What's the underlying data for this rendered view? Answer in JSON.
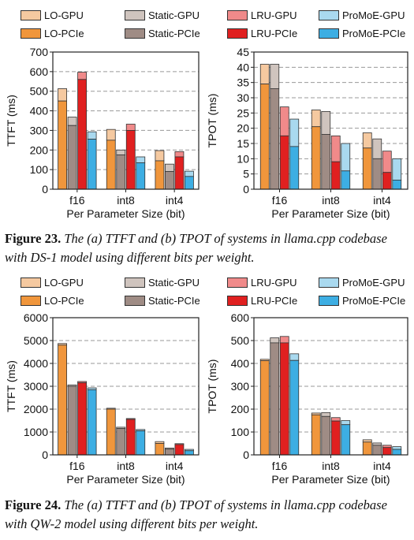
{
  "legend": [
    {
      "name": "LO-GPU",
      "color": "#f5c9a0"
    },
    {
      "name": "Static-GPU",
      "color": "#cfc4be"
    },
    {
      "name": "LRU-GPU",
      "color": "#f08a8a"
    },
    {
      "name": "ProMoE-GPU",
      "color": "#a9d9ef"
    },
    {
      "name": "LO-PCIe",
      "color": "#f0963c"
    },
    {
      "name": "Static-PCIe",
      "color": "#9f8c85"
    },
    {
      "name": "LRU-PCIe",
      "color": "#e02020"
    },
    {
      "name": "ProMoE-PCIe",
      "color": "#3daee3"
    }
  ],
  "figures": [
    {
      "caption_number": "Figure 23.",
      "caption_text": "The (a) TTFT and (b) TPOT of systems in llama.cpp codebase with DS-1 model using different bits per weight.",
      "charts": [
        {
          "type": "bar",
          "ylabel": "TTFT (ms)",
          "xlabel": "Per Parameter Size (bit)",
          "categories": [
            "f16",
            "int8",
            "int4"
          ],
          "ylim": [
            0,
            700
          ],
          "yticks": [
            0,
            100,
            200,
            300,
            400,
            500,
            600,
            700
          ],
          "grid": true,
          "systems": [
            "LO",
            "Static",
            "LRU",
            "ProMoE"
          ],
          "pcie": [
            [
              450,
              325,
              560,
              255
            ],
            [
              250,
              175,
              300,
              135
            ],
            [
              145,
              90,
              165,
              65
            ]
          ],
          "total": [
            [
              513,
              368,
              597,
              293
            ],
            [
              305,
              200,
              332,
              165
            ],
            [
              197,
              128,
              192,
              92
            ]
          ]
        },
        {
          "type": "bar",
          "ylabel": "TPOT (ms)",
          "xlabel": "Per Parameter Size (bit)",
          "categories": [
            "f16",
            "int8",
            "int4"
          ],
          "ylim": [
            0,
            45
          ],
          "yticks": [
            0,
            5,
            10,
            15,
            20,
            25,
            30,
            35,
            40,
            45
          ],
          "grid": true,
          "systems": [
            "LO",
            "Static",
            "LRU",
            "ProMoE"
          ],
          "pcie": [
            [
              34.5,
              33,
              17.5,
              14
            ],
            [
              20.5,
              18,
              9,
              6
            ],
            [
              13.5,
              10,
              5.5,
              3
            ]
          ],
          "total": [
            [
              41,
              41,
              27,
              23
            ],
            [
              26,
              25.5,
              17.5,
              15
            ],
            [
              18.5,
              16.5,
              12.5,
              10
            ]
          ]
        }
      ]
    },
    {
      "caption_number": "Figure 24.",
      "caption_text": "The (a) TTFT and (b) TPOT of systems in llama.cpp codebase with QW-2 model using different bits per weight.",
      "charts": [
        {
          "type": "bar",
          "ylabel": "TTFT (ms)",
          "xlabel": "Per Parameter Size (bit)",
          "categories": [
            "f16",
            "int8",
            "int4"
          ],
          "ylim": [
            0,
            6000
          ],
          "yticks": [
            0,
            1000,
            2000,
            3000,
            4000,
            5000,
            6000
          ],
          "grid": true,
          "systems": [
            "LO",
            "Static",
            "LRU",
            "ProMoE"
          ],
          "pcie": [
            [
              4800,
              3000,
              3150,
              2850
            ],
            [
              2000,
              1150,
              1550,
              1050
            ],
            [
              500,
              250,
              450,
              180
            ]
          ],
          "total": [
            [
              4870,
              3060,
              3210,
              2930
            ],
            [
              2040,
              1210,
              1590,
              1110
            ],
            [
              580,
              300,
              490,
              240
            ]
          ]
        },
        {
          "type": "bar",
          "ylabel": "TPOT (ms)",
          "xlabel": "Per Parameter Size (bit)",
          "categories": [
            "f16",
            "int8",
            "int4"
          ],
          "ylim": [
            0,
            600
          ],
          "yticks": [
            0,
            100,
            200,
            300,
            400,
            500,
            600
          ],
          "grid": true,
          "systems": [
            "LO",
            "Static",
            "LRU",
            "ProMoE"
          ],
          "pcie": [
            [
              412,
              490,
              490,
              413
            ],
            [
              175,
              168,
              148,
              132
            ],
            [
              56,
              42,
              32,
              24
            ]
          ],
          "total": [
            [
              418,
              512,
              518,
              442
            ],
            [
              183,
              185,
              163,
              150
            ],
            [
              66,
              52,
              42,
              36
            ]
          ]
        }
      ]
    }
  ]
}
